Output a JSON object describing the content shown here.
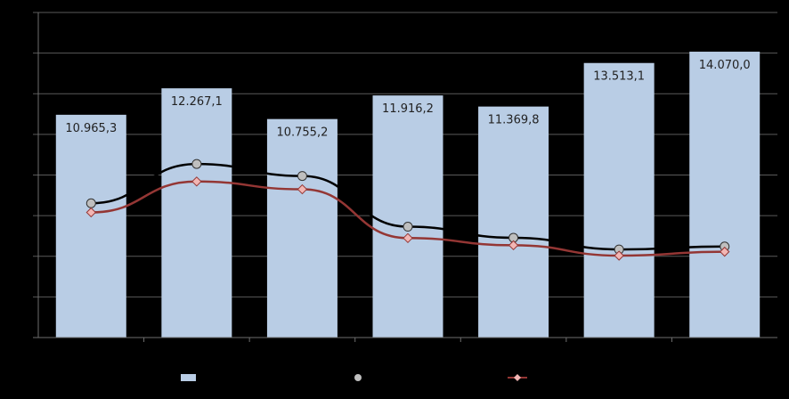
{
  "chart_data": {
    "type": "bar",
    "categories": [
      "",
      "",
      "",
      "",
      "",
      "",
      ""
    ],
    "series": [
      {
        "type": "bar",
        "values": [
          10965.3,
          12267.1,
          10755.2,
          11916.2,
          11369.8,
          13513.1,
          14070.0
        ],
        "value_labels": [
          "10.965,3",
          "12.267,1",
          "10.755,2",
          "11.916,2",
          "11.369,8",
          "13.513,1",
          "14.070,0"
        ],
        "color": "#B9CDE5",
        "legend_marker": "square"
      },
      {
        "type": "line",
        "values": [
          0.413,
          0.534,
          0.497,
          0.341,
          0.307,
          0.271,
          0.28
        ],
        "color": "#000000",
        "marker_color": "#BFBFBF",
        "legend_marker": "circle"
      },
      {
        "type": "line",
        "values": [
          0.385,
          0.48,
          0.456,
          0.306,
          0.284,
          0.252,
          0.264
        ],
        "color": "#943634",
        "marker_color": "#F2B6B4",
        "legend_marker": "diamond"
      }
    ],
    "ylim": [
      0,
      16000
    ],
    "gridlines": 8,
    "grid": true,
    "legend": "bottom",
    "xlabel": "",
    "ylabel": "",
    "title": ""
  },
  "colors": {
    "background": "#000000",
    "gridline": "#5A5A5A",
    "axis": "#6E6E6E",
    "label_text": "#222222"
  }
}
